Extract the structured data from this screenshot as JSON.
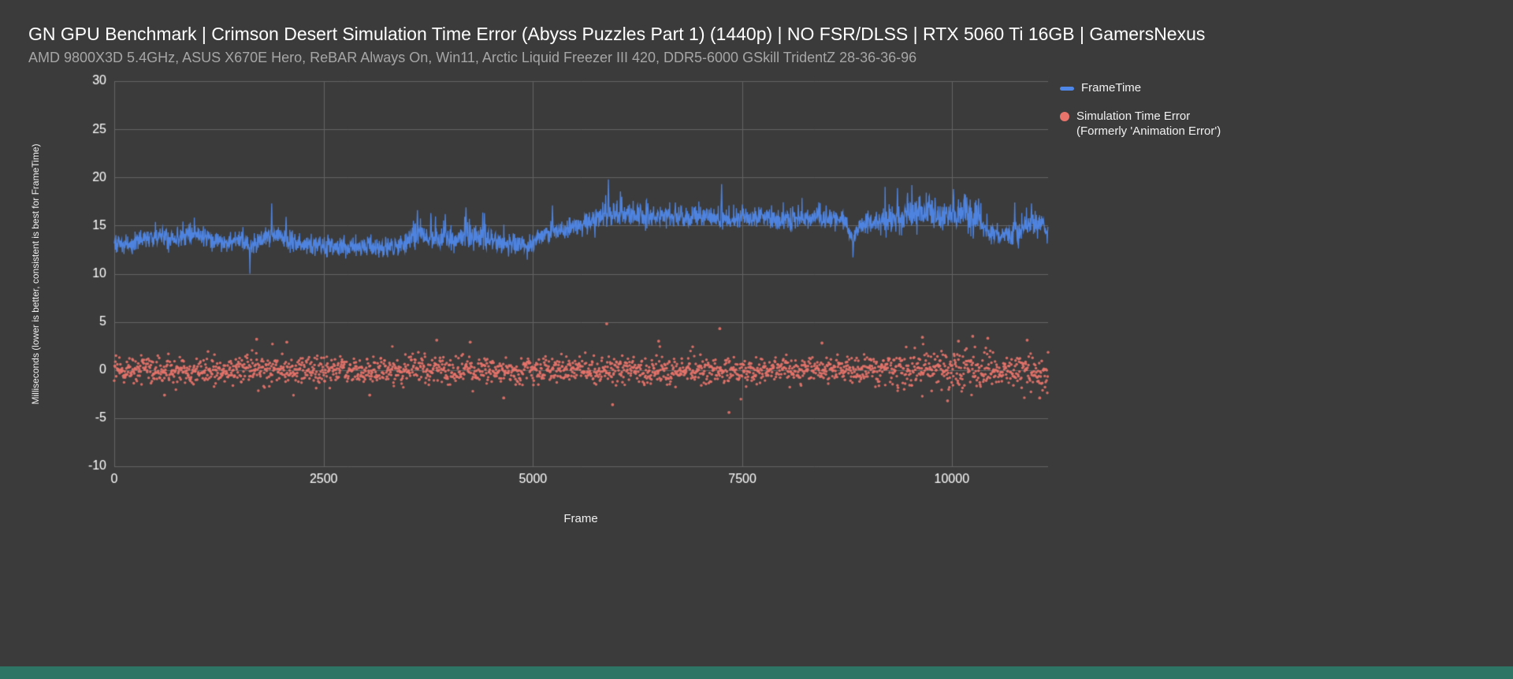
{
  "page": {
    "background": "#3b3b3b",
    "footer_bar_color": "#2f7566",
    "grid_color": "#646464",
    "text_color": "#ffffff"
  },
  "header": {
    "title": "GN GPU Benchmark | Crimson Desert Simulation Time Error (Abyss Puzzles Part 1) (1440p) | NO FSR/DLSS | RTX 5060 Ti 16GB | GamersNexus",
    "subtitle": "AMD 9800X3D 5.4GHz, ASUS X670E Hero, ReBAR Always On, Win11, Arctic Liquid Freezer III 420, DDR5-6000 GSkill TridentZ 28-36-36-96"
  },
  "chart_data": {
    "type": "line",
    "title": "GN GPU Benchmark | Crimson Desert Simulation Time Error (Abyss Puzzles Part 1) (1440p) | NO FSR/DLSS | RTX 5060 Ti 16GB | GamersNexus",
    "xlabel": "Frame",
    "ylabel": "Milliseconds (lower is better, consistent is best for FrameTime)",
    "xlim": [
      0,
      11150
    ],
    "ylim": [
      -10,
      30
    ],
    "x_ticks": [
      0,
      2500,
      5000,
      7500,
      10000
    ],
    "y_ticks": [
      -10,
      -5,
      0,
      5,
      10,
      15,
      20,
      25,
      30
    ],
    "grid": true,
    "legend_position": "right",
    "series": [
      {
        "name": "FrameTime",
        "type": "line",
        "color": "#4f87e8",
        "description": "Noisy frametime trace fluctuating ~12.5-17 ms with occasional spikes",
        "trend": [
          [
            0,
            13.3
          ],
          [
            150,
            13.0
          ],
          [
            350,
            13.6
          ],
          [
            550,
            13.9
          ],
          [
            750,
            13.6
          ],
          [
            900,
            14.3
          ],
          [
            1050,
            14.0
          ],
          [
            1200,
            13.5
          ],
          [
            1350,
            13.2
          ],
          [
            1500,
            13.5
          ],
          [
            1650,
            13.1
          ],
          [
            1800,
            13.8
          ],
          [
            1950,
            14.1
          ],
          [
            2050,
            13.5
          ],
          [
            2200,
            13.1
          ],
          [
            2400,
            12.9
          ],
          [
            2700,
            12.9
          ],
          [
            3000,
            12.9
          ],
          [
            3200,
            12.6
          ],
          [
            3400,
            12.9
          ],
          [
            3550,
            13.7
          ],
          [
            3700,
            14.0
          ],
          [
            3850,
            13.8
          ],
          [
            4000,
            13.7
          ],
          [
            4150,
            13.9
          ],
          [
            4300,
            14.0
          ],
          [
            4450,
            13.7
          ],
          [
            4600,
            13.2
          ],
          [
            4800,
            12.9
          ],
          [
            4950,
            13.0
          ],
          [
            5100,
            13.9
          ],
          [
            5250,
            14.4
          ],
          [
            5400,
            14.7
          ],
          [
            5550,
            15.1
          ],
          [
            5700,
            15.6
          ],
          [
            5850,
            16.1
          ],
          [
            6000,
            16.2
          ],
          [
            6200,
            16.0
          ],
          [
            6400,
            15.9
          ],
          [
            6600,
            16.0
          ],
          [
            6800,
            15.7
          ],
          [
            7000,
            15.8
          ],
          [
            7200,
            15.9
          ],
          [
            7400,
            15.7
          ],
          [
            7600,
            15.6
          ],
          [
            7800,
            15.8
          ],
          [
            8000,
            15.6
          ],
          [
            8200,
            15.7
          ],
          [
            8400,
            15.8
          ],
          [
            8600,
            15.6
          ],
          [
            8750,
            15.4
          ],
          [
            8820,
            13.3
          ],
          [
            8900,
            15.2
          ],
          [
            9100,
            15.4
          ],
          [
            9300,
            15.7
          ],
          [
            9500,
            16.0
          ],
          [
            9700,
            16.1
          ],
          [
            9900,
            16.0
          ],
          [
            10100,
            16.3
          ],
          [
            10250,
            16.0
          ],
          [
            10400,
            14.6
          ],
          [
            10550,
            13.9
          ],
          [
            10700,
            14.1
          ],
          [
            10850,
            14.8
          ],
          [
            11000,
            15.3
          ],
          [
            11150,
            15.0
          ]
        ],
        "noise_ms": 0.9,
        "high_variance_ranges": [
          [
            3450,
            4450,
            1.1
          ],
          [
            5550,
            6400,
            1.1
          ],
          [
            9200,
            10350,
            1.4
          ],
          [
            10700,
            11150,
            1.15
          ]
        ],
        "spikes": [
          [
            1620,
            10.0
          ],
          [
            1880,
            17.3
          ],
          [
            2050,
            15.9
          ],
          [
            3620,
            16.6
          ],
          [
            3780,
            16.3
          ],
          [
            3950,
            16.2
          ],
          [
            4200,
            16.9
          ],
          [
            4420,
            16.3
          ],
          [
            5230,
            17.1
          ],
          [
            5900,
            19.8
          ],
          [
            6060,
            18.0
          ],
          [
            6350,
            17.6
          ],
          [
            6700,
            17.4
          ],
          [
            7250,
            19.3
          ],
          [
            7500,
            17.2
          ],
          [
            8100,
            17.0
          ],
          [
            8500,
            17.1
          ],
          [
            8820,
            11.7
          ],
          [
            9350,
            18.9
          ],
          [
            9470,
            18.4
          ],
          [
            9620,
            18.1
          ],
          [
            9800,
            17.9
          ],
          [
            10020,
            18.8
          ],
          [
            10150,
            18.3
          ],
          [
            10320,
            17.8
          ],
          [
            10750,
            17.4
          ],
          [
            10950,
            17.3
          ]
        ]
      },
      {
        "name": "Simulation Time Error (Formerly 'Animation Error')",
        "type": "scatter",
        "color": "#e8746c",
        "description": "Dense scatter band centered on 0 ms, mostly within ±2 ms, occasional outliers to ±5 ms",
        "mean": 0,
        "typical_spread_ms": 1.2,
        "point_step": 5,
        "spread_regions": [
          [
            1500,
            1900,
            1.2
          ],
          [
            3400,
            4100,
            1.25
          ],
          [
            9200,
            10500,
            1.5
          ],
          [
            10700,
            11150,
            1.35
          ]
        ],
        "outliers": [
          [
            5880,
            4.8
          ],
          [
            7230,
            4.3
          ],
          [
            7340,
            -4.4
          ],
          [
            5950,
            -3.6
          ],
          [
            1700,
            3.2
          ],
          [
            2060,
            2.9
          ],
          [
            3850,
            3.1
          ],
          [
            4650,
            -2.9
          ],
          [
            600,
            -2.6
          ],
          [
            6500,
            3.0
          ],
          [
            8450,
            2.8
          ],
          [
            9650,
            3.4
          ],
          [
            9950,
            -3.2
          ],
          [
            10080,
            3.0
          ],
          [
            10250,
            3.5
          ],
          [
            10430,
            3.3
          ],
          [
            10900,
            3.1
          ],
          [
            11050,
            -2.9
          ],
          [
            4250,
            2.9
          ],
          [
            3050,
            -2.6
          ]
        ]
      }
    ]
  }
}
